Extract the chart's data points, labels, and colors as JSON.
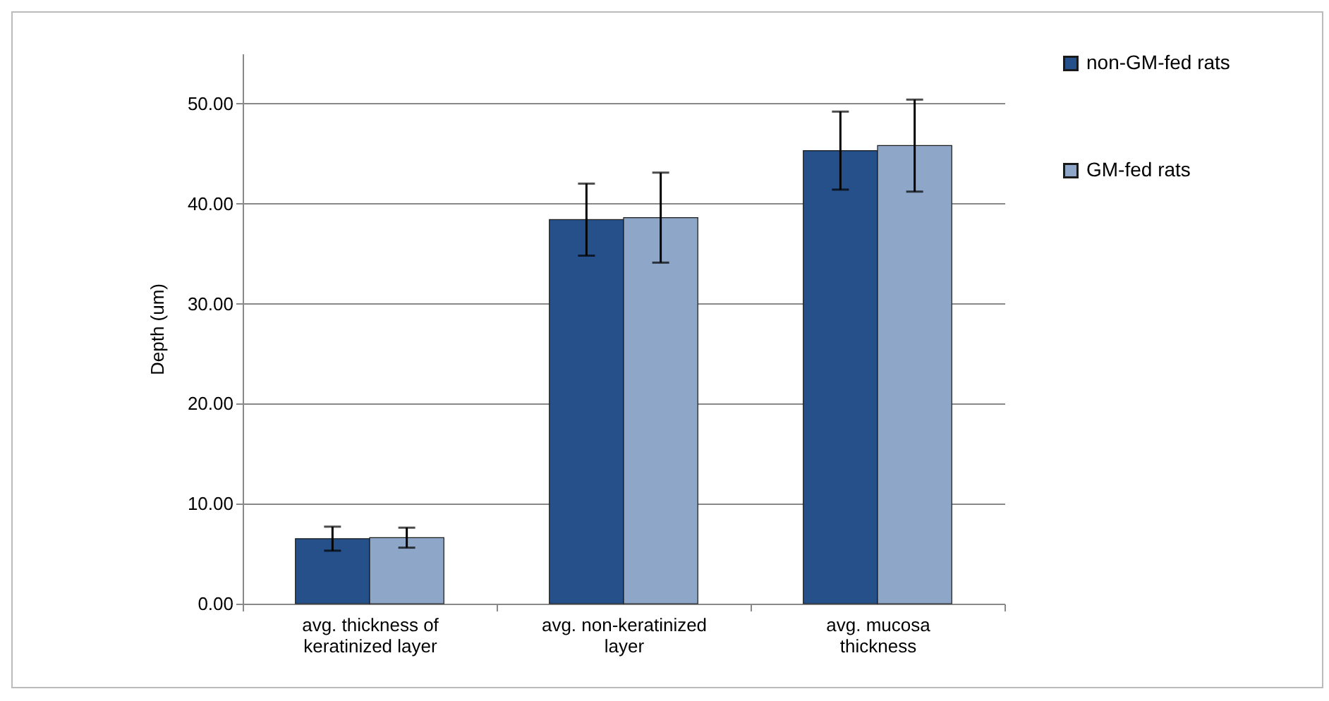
{
  "chart_data": {
    "type": "bar",
    "ylabel": "Depth (um)",
    "categories": [
      "avg. thickness of\nkeratinized layer",
      "avg. non-keratinized\nlayer",
      "avg. mucosa\nthickness"
    ],
    "series": [
      {
        "name": "non-GM-fed rats",
        "color": "#25508a",
        "values": [
          6.5,
          38.4,
          45.3
        ],
        "errors": [
          1.2,
          3.6,
          3.9
        ]
      },
      {
        "name": "GM-fed rats",
        "color": "#8ea7c8",
        "values": [
          6.6,
          38.6,
          45.8
        ],
        "errors": [
          1.0,
          4.5,
          4.6
        ]
      }
    ],
    "ylim": [
      0,
      55
    ],
    "yticks": [
      {
        "value": 0,
        "label": "0.00"
      },
      {
        "value": 10,
        "label": "10.00"
      },
      {
        "value": 20,
        "label": "20.00"
      },
      {
        "value": 30,
        "label": "30.00"
      },
      {
        "value": 40,
        "label": "40.00"
      },
      {
        "value": 50,
        "label": "50.00"
      }
    ],
    "grid": "y",
    "legend": "right"
  }
}
